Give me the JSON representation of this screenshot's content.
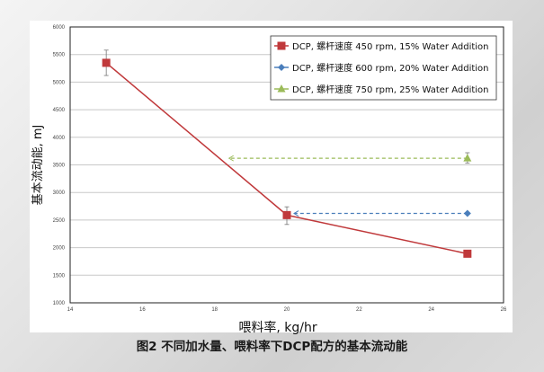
{
  "chart_data": {
    "type": "line",
    "xlabel": "喂料率, kg/hr",
    "ylabel": "基本流动能, mJ",
    "xlim": [
      14,
      26
    ],
    "ylim": [
      1000,
      6000
    ],
    "xticks": [
      14,
      16,
      18,
      20,
      22,
      24,
      26
    ],
    "yticks": [
      1000,
      1500,
      2000,
      2500,
      3000,
      3500,
      4000,
      4500,
      5000,
      5500,
      6000
    ],
    "grid": "horizontal",
    "legend_position": "top-right",
    "series": [
      {
        "name": "DCP, 螺杆速度 450 rpm, 15% Water Addition",
        "color": "#c0393b",
        "marker": "square",
        "x": [
          15,
          20,
          25
        ],
        "y": [
          5350,
          2590,
          1890
        ],
        "error": [
          [
            5120,
            5580
          ],
          [
            2420,
            2740
          ],
          null
        ]
      },
      {
        "name": "DCP, 螺杆速度 600 rpm, 20% Water Addition",
        "color": "#4a7ebb",
        "marker": "diamond",
        "x": [
          25
        ],
        "y": [
          2620
        ],
        "arrow_to_x": 20.2
      },
      {
        "name": "DCP, 螺杆速度 750 rpm, 25% Water Addition",
        "color": "#9bbb59",
        "marker": "triangle",
        "x": [
          25
        ],
        "y": [
          3620
        ],
        "error": [
          [
            3530,
            3720
          ]
        ],
        "arrow_to_x": 18.4
      }
    ]
  },
  "caption": "图2  不同加水量、喂料率下DCP配方的基本流动能"
}
